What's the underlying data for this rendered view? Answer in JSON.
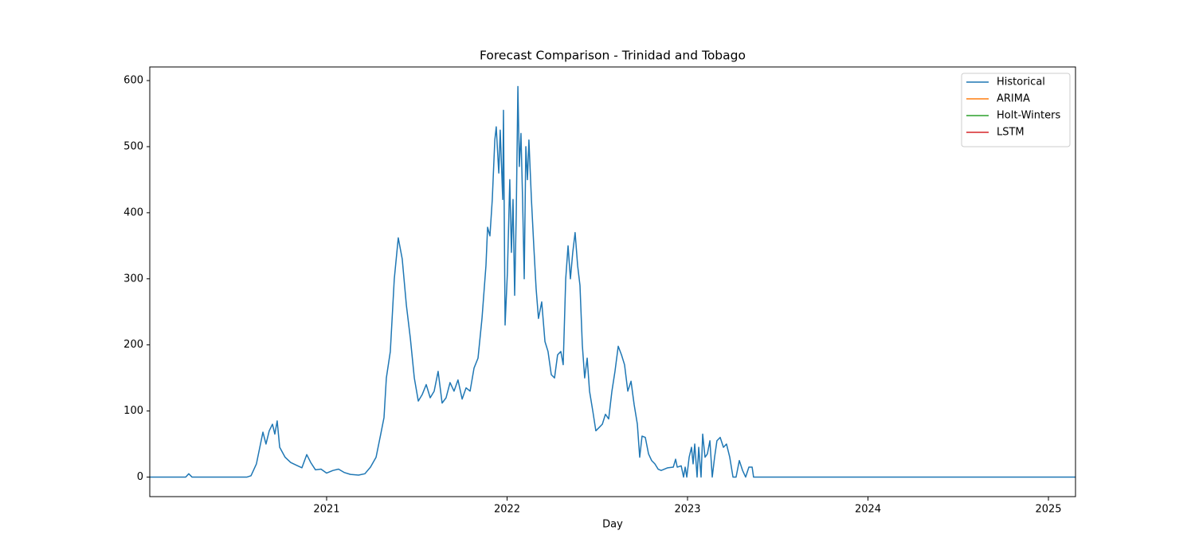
{
  "chart_data": {
    "type": "line",
    "title": "Forecast Comparison - Trinidad and Tobago",
    "xlabel": "Day",
    "xlim": [
      2020.02,
      2025.15
    ],
    "xticks": [
      2021,
      2022,
      2023,
      2024,
      2025
    ],
    "ylim": [
      -29.6,
      620.6
    ],
    "yticks": [
      0,
      100,
      200,
      300,
      400,
      500,
      600
    ],
    "grid": false,
    "legend": "upper right",
    "series": [
      {
        "name": "Historical",
        "color": "#1f77b4",
        "x": [
          2020.02,
          2020.219,
          2020.236,
          2020.254,
          2020.559,
          2020.581,
          2020.611,
          2020.647,
          2020.664,
          2020.682,
          2020.7,
          2020.713,
          2020.726,
          2020.74,
          2020.77,
          2020.801,
          2020.832,
          2020.863,
          2020.89,
          2020.912,
          2020.938,
          2020.969,
          2021.0,
          2021.035,
          2021.066,
          2021.097,
          2021.132,
          2021.177,
          2021.212,
          2021.243,
          2021.274,
          2021.3,
          2021.318,
          2021.331,
          2021.353,
          2021.375,
          2021.397,
          2021.419,
          2021.442,
          2021.464,
          2021.486,
          2021.508,
          2021.53,
          2021.552,
          2021.574,
          2021.596,
          2021.618,
          2021.64,
          2021.662,
          2021.684,
          2021.706,
          2021.728,
          2021.751,
          2021.773,
          2021.795,
          2021.817,
          2021.839,
          2021.861,
          2021.883,
          2021.892,
          2021.905,
          2021.918,
          2021.932,
          2021.94,
          2021.954,
          2021.962,
          2021.976,
          2021.98,
          2021.989,
          2022.002,
          2022.015,
          2022.024,
          2022.033,
          2022.042,
          2022.051,
          2022.06,
          2022.068,
          2022.077,
          2022.086,
          2022.095,
          2022.104,
          2022.113,
          2022.121,
          2022.135,
          2022.148,
          2022.161,
          2022.174,
          2022.192,
          2022.21,
          2022.227,
          2022.245,
          2022.263,
          2022.28,
          2022.298,
          2022.311,
          2022.325,
          2022.338,
          2022.351,
          2022.364,
          2022.377,
          2022.391,
          2022.404,
          2022.417,
          2022.43,
          2022.444,
          2022.457,
          2022.475,
          2022.492,
          2022.51,
          2022.528,
          2022.545,
          2022.563,
          2022.581,
          2022.598,
          2022.616,
          2022.634,
          2022.651,
          2022.669,
          2022.687,
          2022.704,
          2022.722,
          2022.735,
          2022.748,
          2022.766,
          2022.784,
          2022.801,
          2022.819,
          2022.837,
          2022.854,
          2022.89,
          2022.921,
          2022.934,
          2022.943,
          2022.965,
          2022.978,
          2022.987,
          2022.996,
          2023.009,
          2023.022,
          2023.031,
          2023.04,
          2023.053,
          2023.062,
          2023.075,
          2023.084,
          2023.097,
          2023.11,
          2023.124,
          2023.137,
          2023.15,
          2023.163,
          2023.181,
          2023.199,
          2023.216,
          2023.234,
          2023.252,
          2023.269,
          2023.287,
          2023.305,
          2023.322,
          2023.34,
          2023.358,
          2023.366,
          2025.15
        ],
        "values": [
          0,
          0,
          5,
          0,
          0,
          2,
          20,
          68,
          50,
          70,
          80,
          65,
          85,
          45,
          30,
          22,
          18,
          14,
          34,
          22,
          11,
          12,
          6,
          10,
          12,
          7,
          4,
          3,
          5,
          15,
          30,
          65,
          90,
          150,
          190,
          300,
          362,
          330,
          260,
          210,
          150,
          115,
          125,
          140,
          120,
          130,
          160,
          112,
          120,
          143,
          130,
          147,
          118,
          135,
          130,
          165,
          180,
          240,
          320,
          378,
          365,
          420,
          510,
          530,
          460,
          525,
          420,
          555,
          230,
          310,
          450,
          340,
          420,
          275,
          400,
          591,
          470,
          520,
          420,
          300,
          500,
          450,
          510,
          420,
          350,
          285,
          240,
          265,
          205,
          190,
          155,
          150,
          185,
          190,
          170,
          300,
          350,
          300,
          340,
          370,
          320,
          290,
          200,
          150,
          180,
          130,
          100,
          70,
          75,
          80,
          95,
          88,
          130,
          160,
          198,
          185,
          170,
          130,
          145,
          110,
          80,
          30,
          62,
          60,
          35,
          25,
          20,
          12,
          10,
          14,
          15,
          27,
          15,
          17,
          0,
          15,
          0,
          30,
          45,
          20,
          50,
          0,
          45,
          0,
          65,
          30,
          35,
          55,
          0,
          30,
          55,
          60,
          45,
          50,
          30,
          0,
          0,
          25,
          10,
          0,
          15,
          15,
          0,
          0
        ]
      },
      {
        "name": "ARIMA",
        "color": "#ff7f0e",
        "x": [],
        "values": []
      },
      {
        "name": "Holt-Winters",
        "color": "#2ca02c",
        "x": [],
        "values": []
      },
      {
        "name": "LSTM",
        "color": "#d62728",
        "x": [],
        "values": []
      }
    ]
  }
}
